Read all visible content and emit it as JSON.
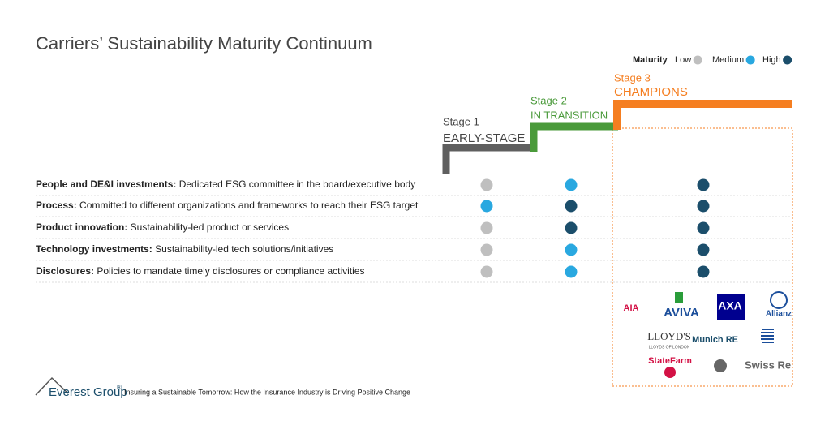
{
  "title": "Carriers’ Sustainability Maturity Continuum",
  "legend": {
    "label": "Maturity",
    "items": [
      {
        "name": "Low",
        "color": "#bfbfbf"
      },
      {
        "name": "Medium",
        "color": "#29a8e0"
      },
      {
        "name": "High",
        "color": "#1b4e6b"
      }
    ]
  },
  "stages": [
    {
      "stage": "Stage 1",
      "name": "EARLY-STAGE",
      "color": "#5f5f5f"
    },
    {
      "stage": "Stage 2",
      "name": "IN TRANSITION",
      "color": "#4a9a3a"
    },
    {
      "stage": "Stage 3",
      "name": "CHAMPIONS",
      "color": "#f57e20"
    }
  ],
  "rows": [
    {
      "label": "People and DE&I investments:",
      "text": "Dedicated ESG committee in the board/executive body",
      "levels": [
        "Low",
        "Medium",
        "High"
      ]
    },
    {
      "label": "Process:",
      "text": "Committed to different organizations and frameworks to reach their ESG target",
      "levels": [
        "Medium",
        "High",
        "High"
      ]
    },
    {
      "label": "Product innovation:",
      "text": "Sustainability-led product or services",
      "levels": [
        "Low",
        "High",
        "High"
      ]
    },
    {
      "label": "Technology investments:",
      "text": "Sustainability-led tech solutions/initiatives",
      "levels": [
        "Low",
        "Medium",
        "High"
      ]
    },
    {
      "label": "Disclosures:",
      "text": "Policies to mandate timely disclosures or compliance activities",
      "levels": [
        "Low",
        "Medium",
        "High"
      ]
    }
  ],
  "logos": [
    "AIA",
    "AVIVA",
    "AXA",
    "Allianz",
    "LLOYD'S",
    "LLOYDS OF LONDON",
    "Munich RE",
    "StateFarm",
    "Swiss Re"
  ],
  "footer": {
    "brand": "Everest Group",
    "mark": "®",
    "text": "Insuring a Sustainable Tomorrow: How the Insurance Industry is Driving Positive Change"
  }
}
